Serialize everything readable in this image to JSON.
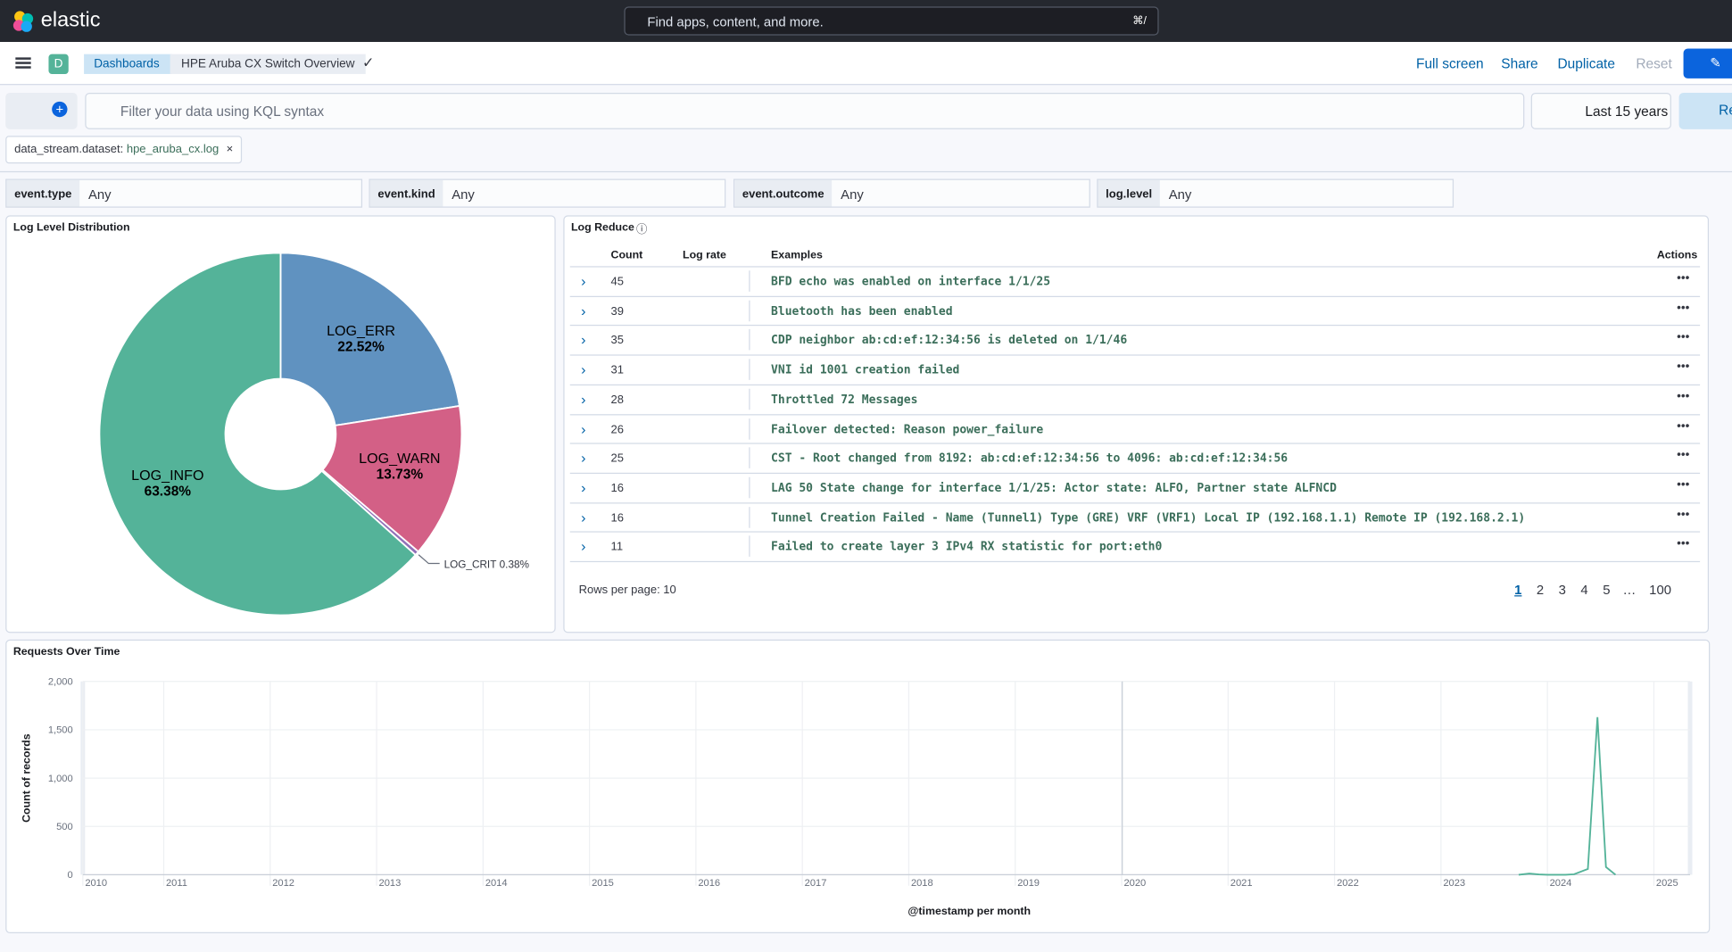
{
  "header": {
    "brand": "elastic",
    "search_placeholder": "Find apps, content, and more.",
    "search_shortcut": "⌘/"
  },
  "breadcrumbs": [
    "Dashboards",
    "HPE Aruba CX Switch Overview"
  ],
  "actions": [
    "Full screen",
    "Share",
    "Duplicate",
    "Reset"
  ],
  "query": {
    "placeholder": "Filter your data using KQL syntax",
    "time_range": "Last 15 years",
    "refresh": "Refresh"
  },
  "filter": {
    "field": "data_stream.dataset:",
    "value": "hpe_aruba_cx.log"
  },
  "controls": [
    {
      "label": "event.type",
      "value": "Any"
    },
    {
      "label": "event.kind",
      "value": "Any"
    },
    {
      "label": "event.outcome",
      "value": "Any"
    },
    {
      "label": "log.level",
      "value": "Any"
    }
  ],
  "chart_data": [
    {
      "type": "pie",
      "title": "Log Level Distribution",
      "categories": [
        "LOG_ERR",
        "LOG_WARN",
        "LOG_CRIT",
        "LOG_INFO"
      ],
      "values": [
        22.52,
        13.73,
        0.38,
        63.38
      ],
      "value_labels": [
        "22.52%",
        "13.73%",
        "0.38%",
        "63.38%"
      ],
      "colors": [
        "#6092c0",
        "#d36086",
        "#9170b8",
        "#54b399"
      ],
      "donut": true
    },
    {
      "type": "line",
      "title": "Requests Over Time",
      "x_label": "@timestamp per month",
      "y_label": "Count of records",
      "x": [
        2023.73,
        2023.83,
        2023.92,
        2024.0,
        2024.08,
        2024.17,
        2024.25,
        2024.38,
        2024.47,
        2024.55,
        2024.64
      ],
      "values": [
        0,
        12,
        3,
        0,
        0,
        0,
        5,
        60,
        1630,
        80,
        0
      ],
      "color": "#54b399",
      "xlim": [
        2010.24,
        2025.34
      ],
      "ylim": [
        0,
        2000
      ],
      "xticks": [
        2010,
        2011,
        2012,
        2013,
        2014,
        2015,
        2016,
        2017,
        2018,
        2019,
        2020,
        2021,
        2022,
        2023,
        2024,
        2025
      ],
      "yticks": [
        0,
        500,
        {
          "value": 1000,
          "label": "1,000"
        },
        {
          "value": 1500,
          "label": "1,500"
        },
        {
          "value": 2000,
          "label": "2,000"
        }
      ],
      "grid": true
    }
  ],
  "log_reduce": {
    "title": "Log Reduce",
    "columns": [
      "Count",
      "Log rate",
      "Examples",
      "Actions"
    ],
    "rows": [
      {
        "count": 45,
        "example": "BFD echo was enabled on interface 1/1/25"
      },
      {
        "count": 39,
        "example": "Bluetooth has been enabled"
      },
      {
        "count": 35,
        "example": "CDP neighbor ab:cd:ef:12:34:56 is deleted on 1/1/46"
      },
      {
        "count": 31,
        "example": "VNI id 1001 creation failed"
      },
      {
        "count": 28,
        "example": "Throttled 72 Messages"
      },
      {
        "count": 26,
        "example": "Failover detected: Reason power_failure"
      },
      {
        "count": 25,
        "example": "CST - Root changed from 8192: ab:cd:ef:12:34:56 to 4096: ab:cd:ef:12:34:56"
      },
      {
        "count": 16,
        "example": "LAG 50 State change for interface 1/1/25: Actor state: ALFO, Partner state ALFNCD"
      },
      {
        "count": 16,
        "example": "Tunnel Creation Failed - Name (Tunnel1) Type (GRE) VRF (VRF1) Local IP (192.168.1.1) Remote IP (192.168.2.1)"
      },
      {
        "count": 11,
        "example": "Failed to create layer 3 IPv4 RX statistic for port:eth0"
      }
    ],
    "rows_per_page": "Rows per page: 10",
    "pages": [
      "1",
      "2",
      "3",
      "4",
      "5",
      "…",
      "100"
    ]
  }
}
